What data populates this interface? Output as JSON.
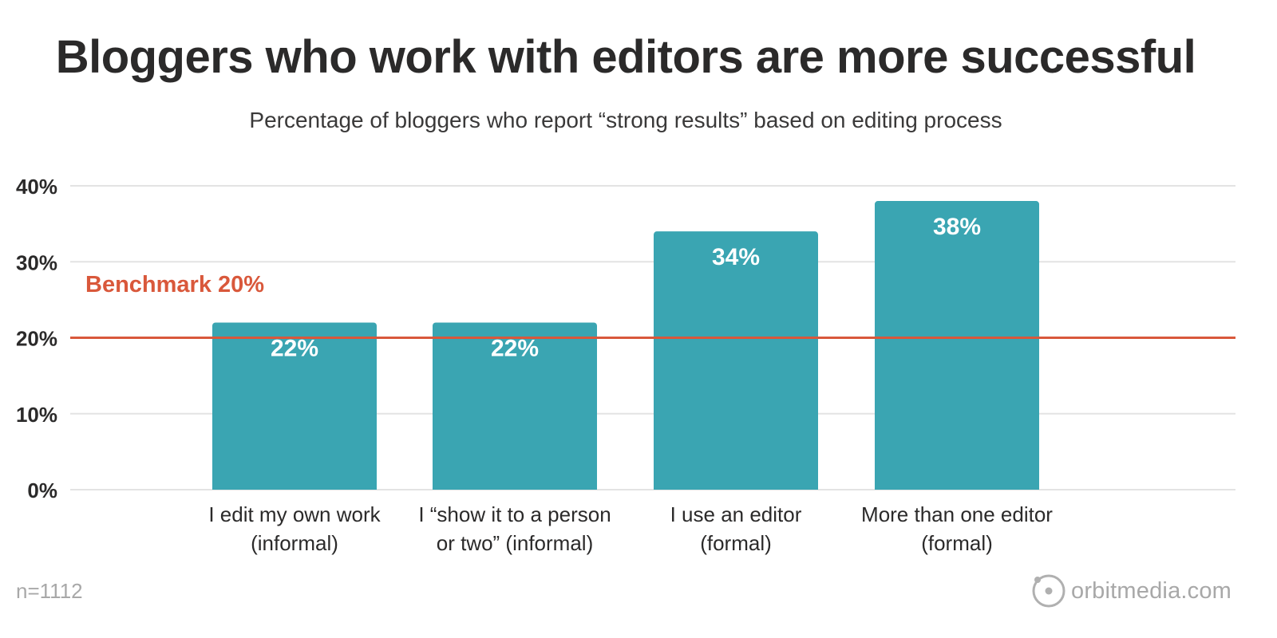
{
  "header": {
    "title": "Bloggers who work with editors are more successful",
    "subtitle": "Percentage of bloggers who report “strong results” based on editing process"
  },
  "footer": {
    "sample_size": "n=1112",
    "brand": "orbitmedia.com"
  },
  "colors": {
    "bar": "#3aa5b2",
    "benchmark": "#d9583b",
    "grid": "#e3e3e3",
    "text": "#2b2a2a",
    "muted": "#a8a8a8"
  },
  "chart_data": {
    "type": "bar",
    "title": "Bloggers who work with editors are more successful",
    "subtitle": "Percentage of bloggers who report “strong results” based on editing process",
    "categories": [
      [
        "I edit my own work",
        "(informal)"
      ],
      [
        "I “show it to a person",
        "or two” (informal)"
      ],
      [
        "I use an editor",
        "(formal)"
      ],
      [
        "More than one editor",
        "(formal)"
      ]
    ],
    "values": [
      22,
      22,
      34,
      38
    ],
    "value_labels": [
      "22%",
      "22%",
      "34%",
      "38%"
    ],
    "ylim": [
      0,
      40
    ],
    "yticks": [
      0,
      10,
      20,
      30,
      40
    ],
    "ytick_labels": [
      "0%",
      "10%",
      "20%",
      "30%",
      "40%"
    ],
    "grid": true,
    "benchmark": {
      "value": 20,
      "label": "Benchmark 20%"
    }
  }
}
